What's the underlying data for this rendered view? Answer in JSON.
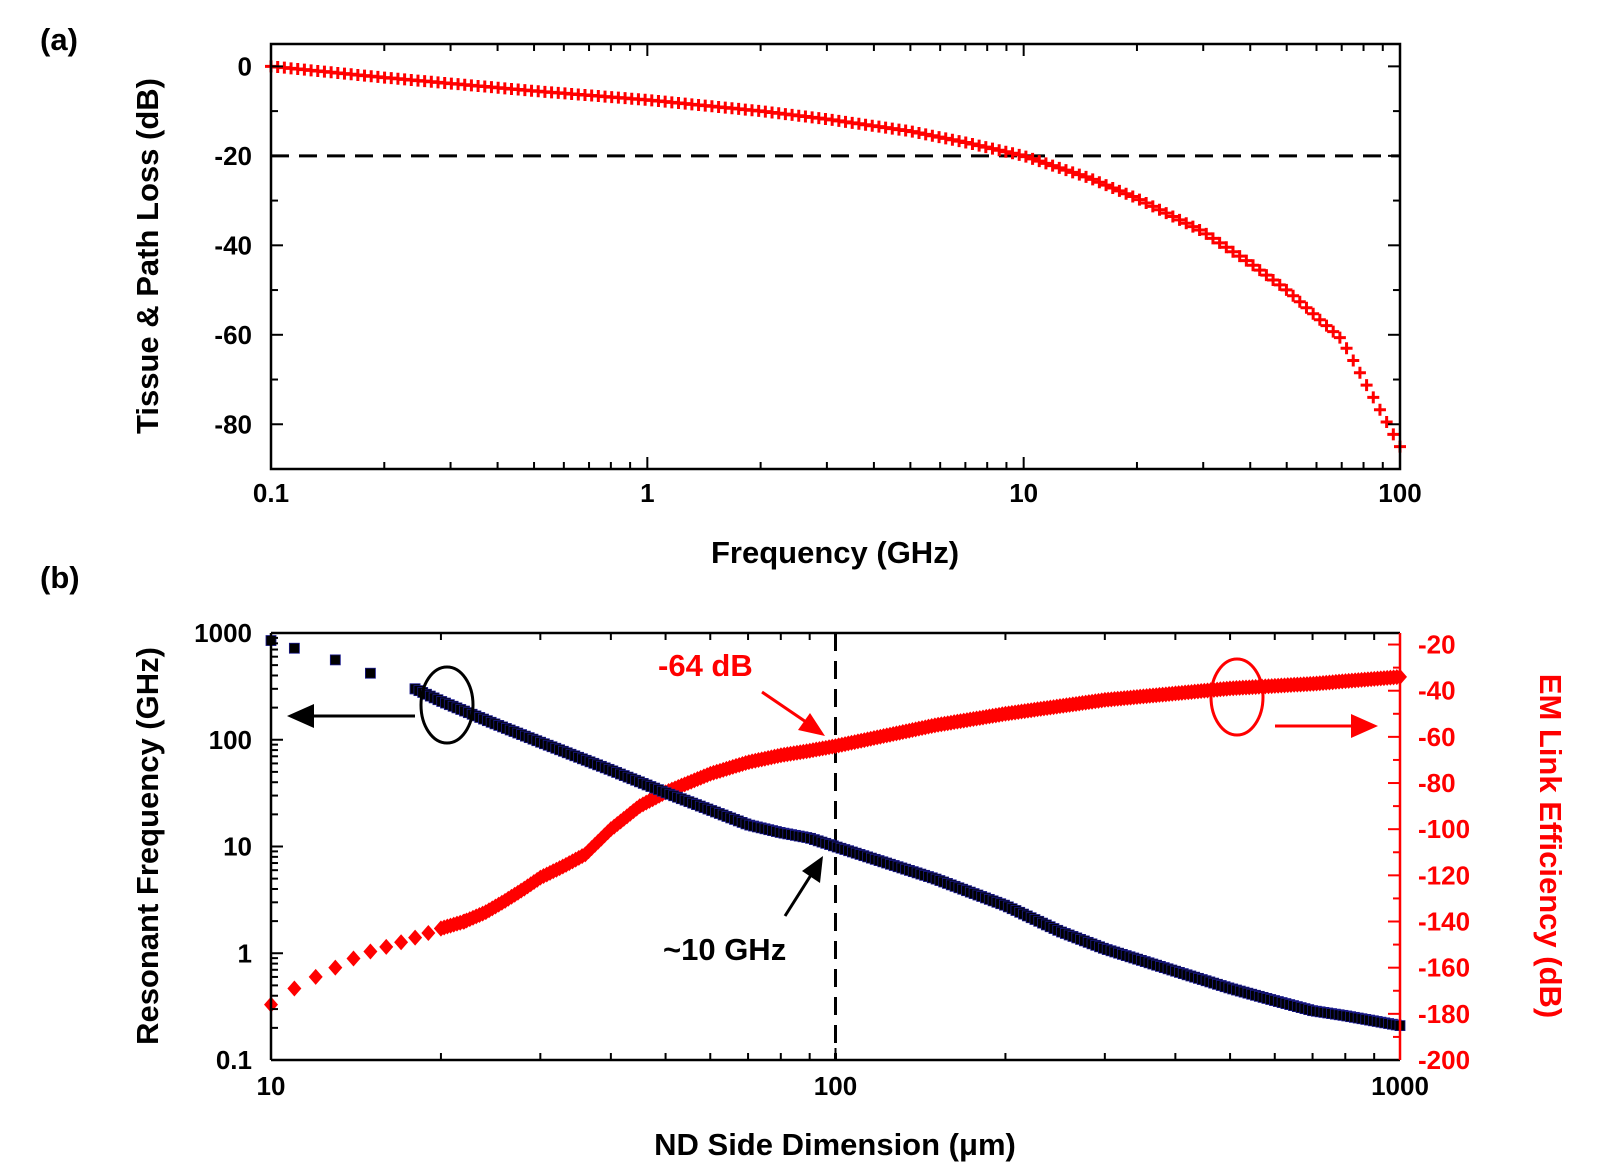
{
  "colors": {
    "red": "#ff0000",
    "black": "#000000",
    "blue_edge": "#1a1a8c"
  },
  "chart_data": [
    {
      "panel_label": "(a)",
      "type": "line",
      "xscale": "log",
      "xlabel": "Frequency (GHz)",
      "ylabel": "Tissue & Path Loss (dB)",
      "xlim": [
        0.1,
        100
      ],
      "ylim": [
        -90,
        5
      ],
      "xticks": [
        {
          "v": 0.1,
          "label": "0.1"
        },
        {
          "v": 1,
          "label": "1"
        },
        {
          "v": 10,
          "label": "10"
        },
        {
          "v": 100,
          "label": "100"
        }
      ],
      "yticks": [
        {
          "v": 0,
          "label": "0"
        },
        {
          "v": -20,
          "label": "-20"
        },
        {
          "v": -40,
          "label": "-40"
        },
        {
          "v": -60,
          "label": "-60"
        },
        {
          "v": -80,
          "label": "-80"
        }
      ],
      "reference_line": {
        "axis": "y",
        "value": -20,
        "style": "dashed"
      },
      "series": [
        {
          "name": "Tissue & Path Loss",
          "marker": "cross",
          "color": "#ff0000",
          "points": [
            [
              0.1,
              0
            ],
            [
              0.2,
              -2.5
            ],
            [
              0.5,
              -5.5
            ],
            [
              1,
              -7.5
            ],
            [
              2,
              -10
            ],
            [
              3,
              -11.8
            ],
            [
              5,
              -14.5
            ],
            [
              7,
              -17
            ],
            [
              10,
              -20
            ],
            [
              15,
              -25
            ],
            [
              20,
              -29.5
            ],
            [
              30,
              -37
            ],
            [
              40,
              -44
            ],
            [
              50,
              -50
            ],
            [
              70,
              -61
            ],
            [
              100,
              -85
            ]
          ]
        }
      ]
    },
    {
      "panel_label": "(b)",
      "type": "scatter",
      "xscale": "log",
      "xlabel": "ND Side Dimension (μm)",
      "ylabel": "Resonant Frequency (GHz)",
      "ylabel_right": "EM Link Efficiency (dB)",
      "xlim": [
        10,
        1000
      ],
      "ylim_left": [
        0.1,
        1000
      ],
      "ylim_right": [
        -200,
        -15
      ],
      "xticks": [
        {
          "v": 10,
          "label": "10"
        },
        {
          "v": 100,
          "label": "100"
        },
        {
          "v": 1000,
          "label": "1000"
        }
      ],
      "yticks_left": [
        {
          "v": 0.1,
          "label": "0.1"
        },
        {
          "v": 1,
          "label": "1"
        },
        {
          "v": 10,
          "label": "10"
        },
        {
          "v": 100,
          "label": "100"
        },
        {
          "v": 1000,
          "label": "1000"
        }
      ],
      "yticks_right": [
        {
          "v": -20,
          "label": "-20"
        },
        {
          "v": -40,
          "label": "-40"
        },
        {
          "v": -60,
          "label": "-60"
        },
        {
          "v": -80,
          "label": "-80"
        },
        {
          "v": -100,
          "label": "-100"
        },
        {
          "v": -120,
          "label": "-120"
        },
        {
          "v": -140,
          "label": "-140"
        },
        {
          "v": -160,
          "label": "-160"
        },
        {
          "v": -180,
          "label": "-180"
        },
        {
          "v": -200,
          "label": "-200"
        }
      ],
      "reference_line": {
        "axis": "x",
        "value": 100,
        "style": "dashed"
      },
      "series": [
        {
          "name": "Resonant Frequency",
          "axis": "left",
          "marker": "square",
          "color": "#000000",
          "points": [
            [
              10,
              850
            ],
            [
              11,
              720
            ],
            [
              13,
              560
            ],
            [
              15,
              420
            ],
            [
              18,
              300
            ],
            [
              20,
              230
            ],
            [
              25,
              140
            ],
            [
              30,
              95
            ],
            [
              40,
              52
            ],
            [
              50,
              32
            ],
            [
              60,
              22
            ],
            [
              70,
              16
            ],
            [
              80,
              13.5
            ],
            [
              90,
              12
            ],
            [
              100,
              10
            ],
            [
              150,
              5
            ],
            [
              200,
              2.8
            ],
            [
              250,
              1.6
            ],
            [
              300,
              1.1
            ],
            [
              400,
              0.68
            ],
            [
              500,
              0.47
            ],
            [
              600,
              0.36
            ],
            [
              700,
              0.29
            ],
            [
              800,
              0.26
            ],
            [
              1000,
              0.21
            ]
          ]
        },
        {
          "name": "EM Link Efficiency",
          "axis": "right",
          "marker": "diamond",
          "color": "#ff0000",
          "points": [
            [
              10,
              -176
            ],
            [
              11,
              -169
            ],
            [
              12,
              -164
            ],
            [
              13,
              -160
            ],
            [
              14,
              -156
            ],
            [
              15,
              -153
            ],
            [
              16,
              -151
            ],
            [
              17,
              -149
            ],
            [
              18,
              -147
            ],
            [
              19,
              -145
            ],
            [
              20,
              -143
            ],
            [
              22,
              -140
            ],
            [
              24,
              -136
            ],
            [
              26,
              -131
            ],
            [
              28,
              -126
            ],
            [
              30,
              -121
            ],
            [
              33,
              -116
            ],
            [
              36,
              -111
            ],
            [
              40,
              -100
            ],
            [
              45,
              -90
            ],
            [
              50,
              -84
            ],
            [
              60,
              -76
            ],
            [
              70,
              -71
            ],
            [
              80,
              -68
            ],
            [
              90,
              -66
            ],
            [
              100,
              -64
            ],
            [
              150,
              -55
            ],
            [
              200,
              -50
            ],
            [
              300,
              -44
            ],
            [
              500,
              -39
            ],
            [
              700,
              -37
            ],
            [
              1000,
              -34
            ]
          ]
        }
      ],
      "annotations": [
        {
          "text": "-64 dB",
          "color": "#ff0000"
        },
        {
          "text": "~10 GHz",
          "color": "#000000"
        }
      ]
    }
  ]
}
